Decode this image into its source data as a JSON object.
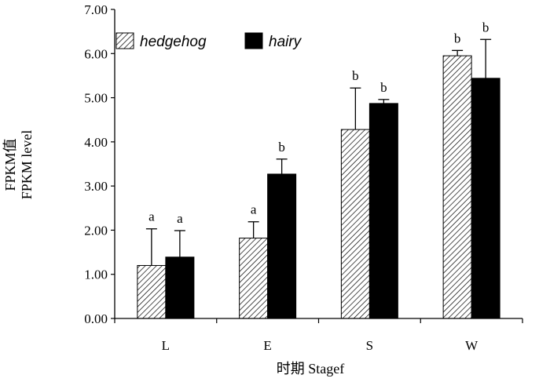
{
  "chart_data": {
    "type": "bar",
    "title": "",
    "xlabel": "时期 Stagef",
    "ylabel_lines": [
      "FPKM值",
      "FPKM level"
    ],
    "ylim": [
      0,
      7
    ],
    "yticks": [
      0,
      1,
      2,
      3,
      4,
      5,
      6,
      7
    ],
    "ytick_labels": [
      "0.00",
      "1.00",
      "2.00",
      "3.00",
      "4.00",
      "5.00",
      "6.00",
      "7.00"
    ],
    "categories": [
      "L",
      "E",
      "S",
      "W"
    ],
    "legend_position": "top-left",
    "series": [
      {
        "name": "hedgehog",
        "pattern": "hatched",
        "values": [
          1.2,
          1.82,
          4.28,
          5.95
        ],
        "errors": [
          0.83,
          0.37,
          0.94,
          0.12
        ],
        "sig_labels": [
          "a",
          "a",
          "b",
          "b"
        ]
      },
      {
        "name": "hairy",
        "pattern": "solid-black",
        "values": [
          1.39,
          3.27,
          4.87,
          5.44
        ],
        "errors": [
          0.6,
          0.34,
          0.09,
          0.88
        ],
        "sig_labels": [
          "a",
          "b",
          "b",
          "b"
        ]
      }
    ]
  }
}
